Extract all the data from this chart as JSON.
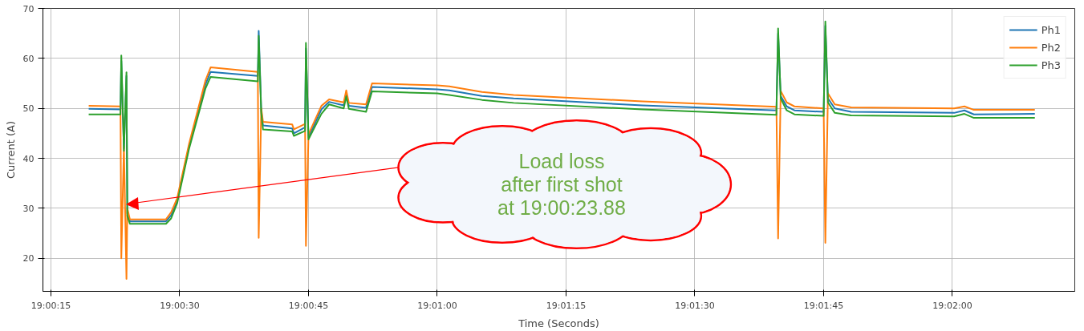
{
  "chart_data": {
    "type": "line",
    "xlabel": "Time (Seconds)",
    "ylabel": "Current (A)",
    "x": [
      19.005389,
      19.006417,
      19.006444,
      19.006528,
      19.006611,
      19.006639,
      19.006722,
      19.007889,
      19.008056,
      19.00825,
      19.008639,
      19.009167,
      19.009333,
      19.010861,
      19.010889,
      19.010972,
      19.011028,
      19.011972,
      19.012028,
      19.012389,
      19.012417,
      19.0125,
      19.012917,
      19.013167,
      19.013639,
      19.013722,
      19.013806,
      19.014361,
      19.014556,
      19.016667,
      19.017056,
      19.018111,
      19.019139,
      19.023306,
      19.027639,
      19.027694,
      19.027778,
      19.027972,
      19.028222,
      19.029167,
      19.029222,
      19.029306,
      19.029528,
      19.030056,
      19.033389,
      19.033722,
      19.034028,
      19.036
    ],
    "series": [
      {
        "name": "Ph1",
        "color": "#1f77b4",
        "values": [
          49.9,
          49.8,
          59.5,
          42.0,
          56.5,
          29.0,
          27.4,
          27.4,
          28.6,
          31.5,
          42.5,
          54.8,
          57.3,
          56.5,
          65.5,
          49.5,
          46.6,
          46.0,
          45.0,
          46.2,
          62.0,
          44.2,
          49.8,
          51.3,
          50.6,
          53.0,
          50.5,
          50.1,
          54.3,
          53.8,
          53.6,
          52.5,
          52.0,
          50.6,
          49.6,
          65.0,
          52.5,
          50.4,
          49.6,
          49.3,
          66.5,
          52.0,
          50.0,
          49.3,
          49.1,
          49.6,
          48.8,
          48.9
        ]
      },
      {
        "name": "Ph2",
        "color": "#ff7f0e",
        "values": [
          50.5,
          50.4,
          20.0,
          42.5,
          15.9,
          30.0,
          27.8,
          27.8,
          29.2,
          32.0,
          43.0,
          55.6,
          58.2,
          57.3,
          24.1,
          50.0,
          47.3,
          46.8,
          45.8,
          46.9,
          22.5,
          44.8,
          50.5,
          51.8,
          51.2,
          53.6,
          51.1,
          50.8,
          55.0,
          54.6,
          54.4,
          53.3,
          52.7,
          51.4,
          50.3,
          24.0,
          53.5,
          51.2,
          50.4,
          50.0,
          23.1,
          53.0,
          50.8,
          50.2,
          50.0,
          50.4,
          49.7,
          49.7
        ]
      },
      {
        "name": "Ph3",
        "color": "#2ca02c",
        "values": [
          48.8,
          48.8,
          60.6,
          41.5,
          57.2,
          28.5,
          26.9,
          26.9,
          28.0,
          31.0,
          42.0,
          54.0,
          56.3,
          55.4,
          64.5,
          49.0,
          45.8,
          45.4,
          44.5,
          45.5,
          63.1,
          43.8,
          48.9,
          50.8,
          50.0,
          52.4,
          49.9,
          49.3,
          53.4,
          53.0,
          52.7,
          51.7,
          51.1,
          49.8,
          48.7,
          66.0,
          52.0,
          49.6,
          48.8,
          48.5,
          67.4,
          51.2,
          49.1,
          48.6,
          48.4,
          48.9,
          48.1,
          48.1
        ]
      }
    ],
    "xlim": [
      19.003908,
      19.037292
    ],
    "ylim": [
      13.4,
      70
    ],
    "xticks": [
      {
        "value": 19.004167,
        "label": "19:00:15"
      },
      {
        "value": 19.008333,
        "label": "19:00:30"
      },
      {
        "value": 19.0125,
        "label": "19:00:45"
      },
      {
        "value": 19.016667,
        "label": "19:01:00"
      },
      {
        "value": 19.020833,
        "label": "19:01:15"
      },
      {
        "value": 19.025,
        "label": "19:01:30"
      },
      {
        "value": 19.029167,
        "label": "19:01:45"
      },
      {
        "value": 19.033333,
        "label": "19:02:00"
      }
    ],
    "yticks": [
      20,
      30,
      40,
      50,
      60,
      70
    ],
    "grid": true,
    "legend": "top right",
    "annotations": [
      "Load loss\nafter first shot\nat 19:00:23.88"
    ]
  }
}
